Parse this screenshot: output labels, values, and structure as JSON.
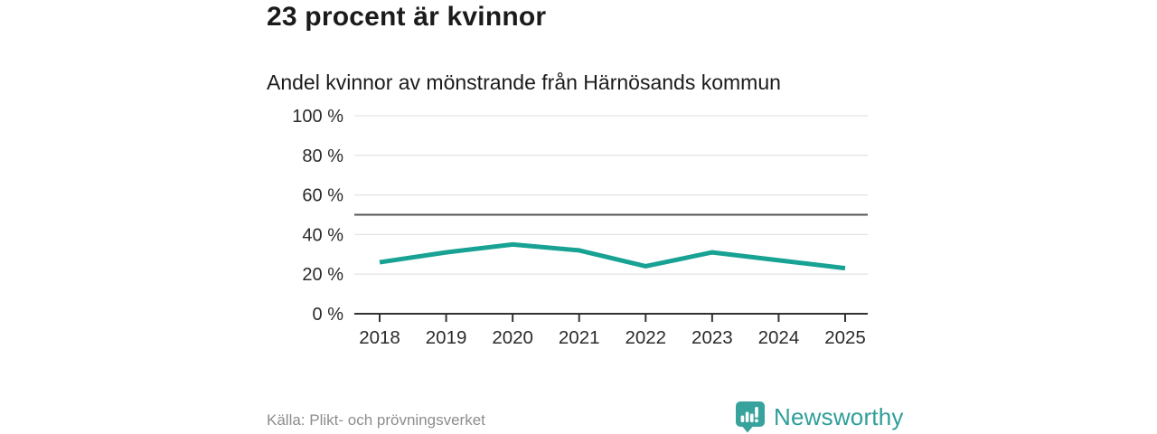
{
  "headline": "23 procent är kvinnor",
  "chart_data": {
    "type": "line",
    "title": "Andel kvinnor av mönstrande från Härnösands kommun",
    "categories": [
      "2018",
      "2019",
      "2020",
      "2021",
      "2022",
      "2023",
      "2024",
      "2025"
    ],
    "series": [
      {
        "name": "Andel kvinnor",
        "values": [
          26,
          31,
          35,
          32,
          24,
          31,
          27,
          23
        ]
      }
    ],
    "ylim": [
      0,
      100
    ],
    "yticks": [
      0,
      20,
      40,
      60,
      80,
      100
    ],
    "ytick_labels": [
      "0 %",
      "20 %",
      "40 %",
      "60 %",
      "80 %",
      "100 %"
    ],
    "benchmark": 50,
    "grid": true,
    "legend": "none",
    "colors": {
      "line": "#17a294",
      "grid": "#e4e4e4",
      "benchmark": "#54545a",
      "axis": "#333333",
      "text": "#2b2b2b"
    }
  },
  "footer": {
    "source": "Källa: Plikt- och prövningsverket",
    "brand": "Newsworthy",
    "brand_color": "#2f9e99",
    "logo_color": "#38a39d"
  }
}
